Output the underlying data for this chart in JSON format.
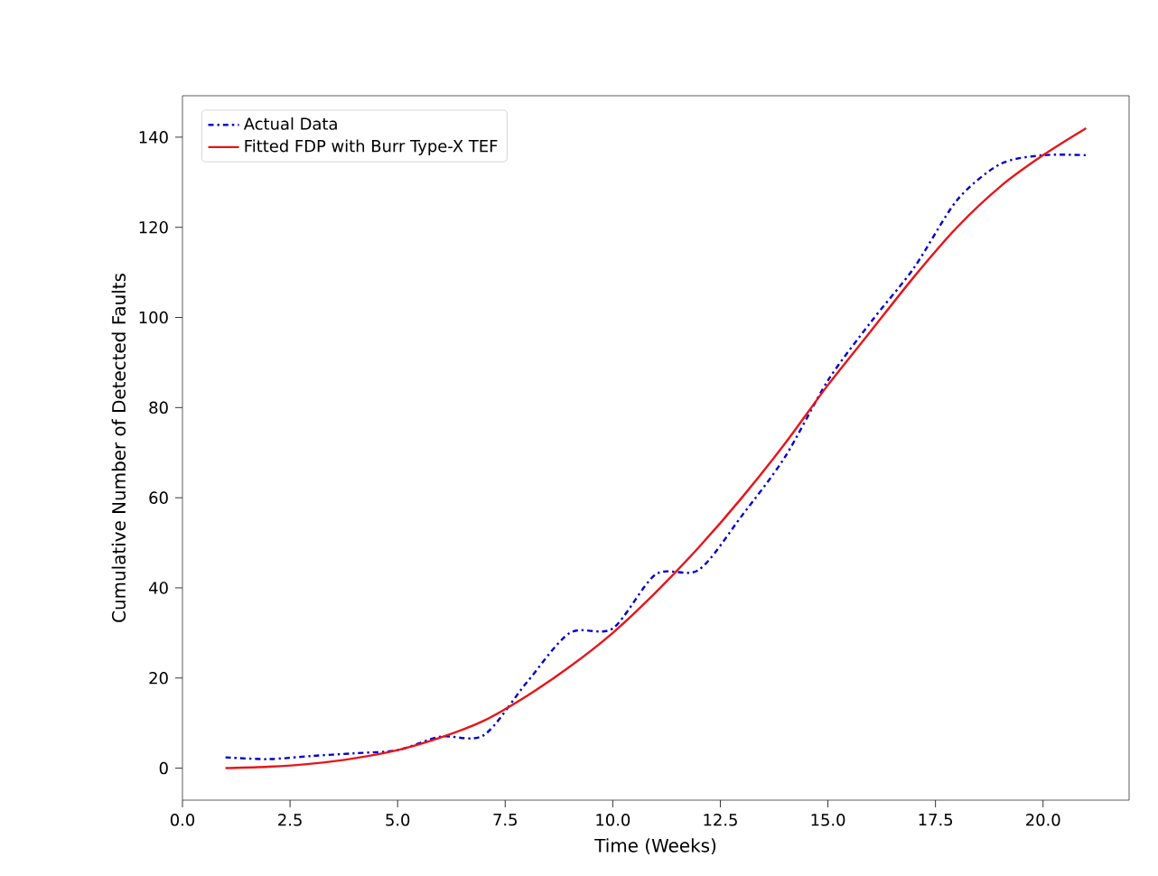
{
  "chart_data": {
    "type": "line",
    "xlabel": "Time (Weeks)",
    "ylabel": "Cumulative Number of Detected Faults",
    "x": [
      1,
      2,
      3,
      4,
      5,
      6,
      7,
      8,
      9,
      10,
      11,
      12,
      13,
      14,
      15,
      16,
      17,
      18,
      19,
      20,
      21
    ],
    "series": [
      {
        "name": "Actual Data",
        "color": "#0000cc",
        "line_style": "dashdot",
        "values": [
          2.4,
          2,
          2.7,
          3.3,
          4,
          7,
          7.3,
          19,
          30,
          31,
          43,
          44,
          56,
          69,
          86,
          99,
          111,
          126,
          134,
          136,
          136
        ]
      },
      {
        "name": "Fitted FDP with Burr Type-X TEF",
        "color": "#e8141a",
        "line_style": "solid",
        "values": [
          0,
          0.3,
          1,
          2.2,
          4,
          6.8,
          10.5,
          16,
          22.5,
          30,
          39,
          49,
          60,
          72,
          85,
          97,
          109,
          120,
          129,
          136,
          142
        ]
      }
    ],
    "xlim": [
      0,
      22
    ],
    "ylim": [
      -7.1,
      149.2
    ],
    "xticks": [
      {
        "value": 0,
        "label": "0.0"
      },
      {
        "value": 2.5,
        "label": "2.5"
      },
      {
        "value": 5,
        "label": "5.0"
      },
      {
        "value": 7.5,
        "label": "7.5"
      },
      {
        "value": 10,
        "label": "10.0"
      },
      {
        "value": 12.5,
        "label": "12.5"
      },
      {
        "value": 15,
        "label": "15.0"
      },
      {
        "value": 17.5,
        "label": "17.5"
      },
      {
        "value": 20,
        "label": "20.0"
      }
    ],
    "yticks": [
      0,
      20,
      40,
      60,
      80,
      100,
      120,
      140
    ],
    "legend": "top left"
  }
}
